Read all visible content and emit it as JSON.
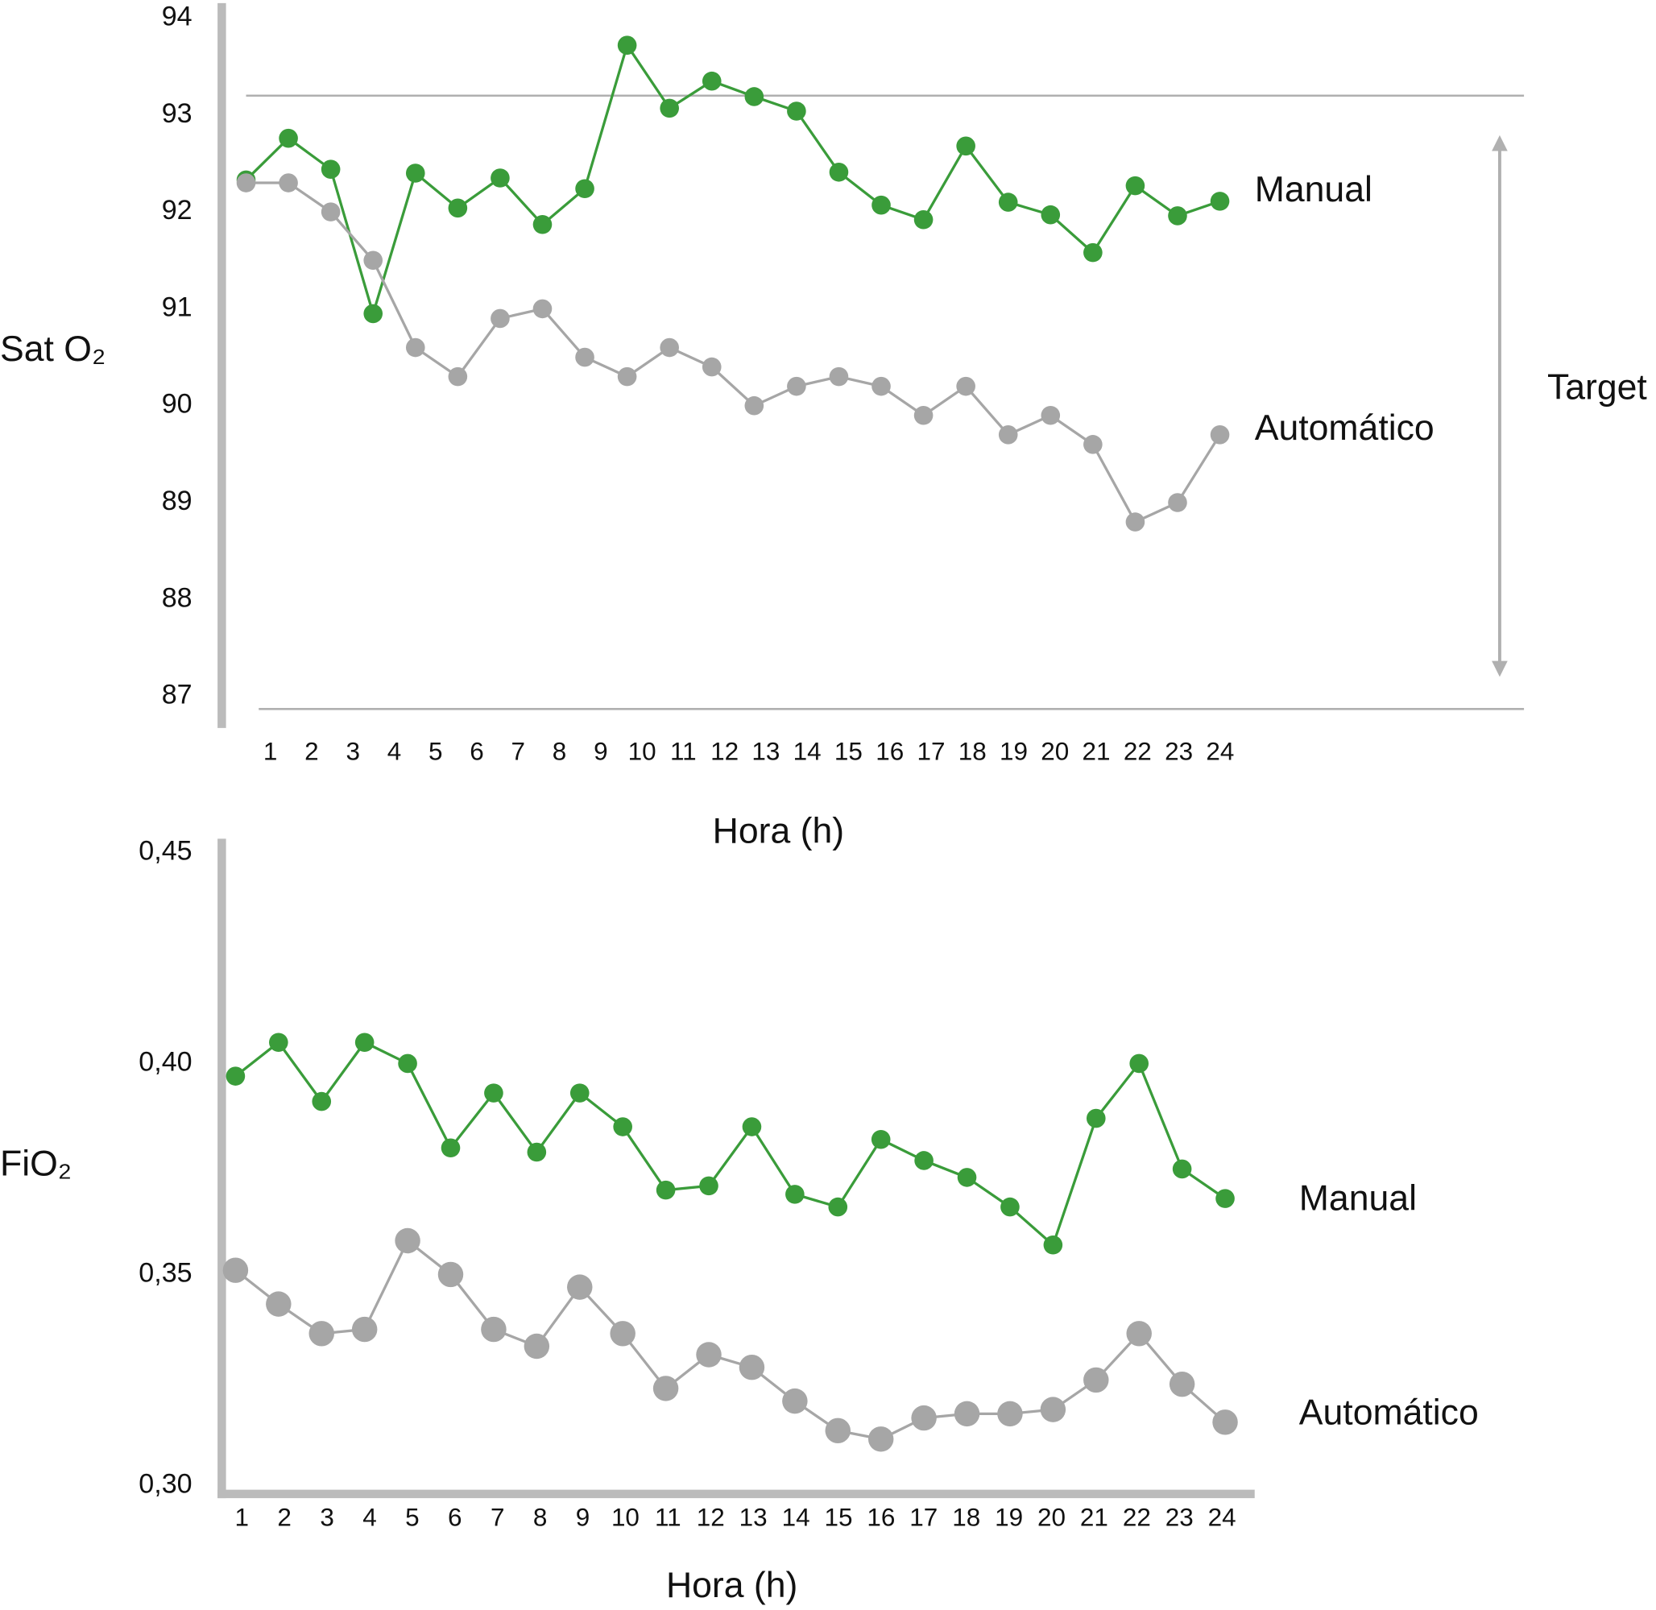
{
  "chart_data": [
    {
      "type": "line",
      "y_label": "Sat O₂",
      "x_label": "Hora (h)",
      "categories": [
        "1",
        "2",
        "3",
        "4",
        "5",
        "6",
        "7",
        "8",
        "9",
        "10",
        "11",
        "12",
        "13",
        "14",
        "15",
        "16",
        "17",
        "18",
        "19",
        "20",
        "21",
        "22",
        "23",
        "24"
      ],
      "series": [
        {
          "name": "Manual",
          "color": "#3a9c3a",
          "values": [
            92.33,
            92.76,
            92.44,
            90.95,
            92.4,
            92.04,
            92.35,
            91.87,
            92.24,
            93.72,
            93.07,
            93.35,
            93.19,
            93.04,
            92.41,
            92.07,
            91.92,
            92.68,
            92.1,
            91.97,
            91.58,
            92.27,
            91.96,
            92.11
          ]
        },
        {
          "name": "Automático",
          "color": "#a6a6a6",
          "values": [
            92.3,
            92.3,
            92.0,
            91.5,
            90.6,
            90.3,
            90.9,
            91.0,
            90.5,
            90.3,
            90.6,
            90.4,
            90.0,
            90.2,
            90.3,
            90.2,
            89.9,
            90.2,
            89.7,
            89.9,
            89.6,
            88.8,
            89.0,
            89.7
          ]
        }
      ],
      "ylim": [
        86.75,
        94.1
      ],
      "yticks": [
        87,
        88,
        89,
        90,
        91,
        92,
        93,
        94
      ],
      "target_range": [
        86.87,
        93.2
      ],
      "target_label": "Target"
    },
    {
      "type": "line",
      "y_label": "FiO₂",
      "x_label": "Hora (h)",
      "categories": [
        "1",
        "2",
        "3",
        "4",
        "5",
        "6",
        "7",
        "8",
        "9",
        "10",
        "11",
        "12",
        "13",
        "14",
        "15",
        "16",
        "17",
        "18",
        "19",
        "20",
        "21",
        "22",
        "23",
        "24"
      ],
      "series": [
        {
          "name": "Manual",
          "color": "#3a9c3a",
          "values": [
            0.397,
            0.405,
            0.391,
            0.405,
            0.4,
            0.38,
            0.393,
            0.379,
            0.393,
            0.385,
            0.37,
            0.371,
            0.385,
            0.369,
            0.366,
            0.382,
            0.377,
            0.373,
            0.366,
            0.357,
            0.387,
            0.4,
            0.375,
            0.368
          ]
        },
        {
          "name": "Automático",
          "color": "#a6a6a6",
          "values": [
            0.351,
            0.343,
            0.336,
            0.337,
            0.358,
            0.35,
            0.337,
            0.333,
            0.347,
            0.336,
            0.323,
            0.331,
            0.328,
            0.32,
            0.313,
            0.311,
            0.316,
            0.317,
            0.317,
            0.318,
            0.325,
            0.336,
            0.324,
            0.315
          ]
        }
      ],
      "ylim": [
        0.298,
        0.453
      ],
      "yticks": [
        {
          "value": 0.3,
          "label": "0,30"
        },
        {
          "value": 0.35,
          "label": "0,35"
        },
        {
          "value": 0.4,
          "label": "0,40"
        },
        {
          "value": 0.45,
          "label": "0,45"
        }
      ]
    }
  ]
}
